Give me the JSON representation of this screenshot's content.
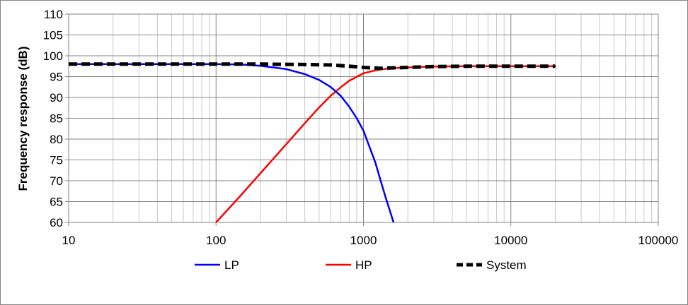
{
  "chart_data": {
    "type": "line",
    "title": "",
    "xlabel": "",
    "ylabel": "Frequency response (dB)",
    "x_scale": "log",
    "xlim": [
      10,
      100000
    ],
    "ylim": [
      60,
      110
    ],
    "x_ticks": [
      "10",
      "100",
      "1000",
      "10000",
      "100000"
    ],
    "x_tick_values": [
      10,
      100,
      1000,
      10000,
      100000
    ],
    "y_ticks": [
      60,
      65,
      70,
      75,
      80,
      85,
      90,
      95,
      100,
      105,
      110
    ],
    "grid": true,
    "legend_position": "bottom",
    "series": [
      {
        "name": "LP",
        "color": "#0000ff",
        "style": "solid",
        "x": [
          10,
          20,
          50,
          100,
          150,
          200,
          300,
          400,
          500,
          600,
          700,
          800,
          900,
          1000,
          1200,
          1400,
          1600
        ],
        "y": [
          98,
          98,
          98,
          98,
          97.9,
          97.6,
          96.8,
          95.6,
          94.2,
          92.5,
          90.4,
          87.8,
          85.0,
          82.0,
          74.5,
          66.5,
          60
        ]
      },
      {
        "name": "HP",
        "color": "#ff0000",
        "style": "solid",
        "x": [
          100,
          150,
          200,
          300,
          400,
          500,
          600,
          700,
          800,
          1000,
          1200,
          1500,
          2000,
          3000,
          5000,
          10000,
          20000
        ],
        "y": [
          60,
          66.8,
          71.8,
          78.8,
          83.8,
          87.6,
          90.4,
          92.4,
          94.0,
          95.8,
          96.5,
          97.0,
          97.2,
          97.4,
          97.5,
          97.5,
          97.5
        ]
      },
      {
        "name": "System",
        "color": "#000000",
        "style": "dashed",
        "x": [
          10,
          50,
          100,
          200,
          400,
          600,
          800,
          1000,
          1300,
          2000,
          3000,
          5000,
          10000,
          20000
        ],
        "y": [
          98,
          98,
          98,
          98,
          97.9,
          97.8,
          97.5,
          97.2,
          97.0,
          97.2,
          97.4,
          97.5,
          97.5,
          97.5
        ]
      }
    ]
  }
}
